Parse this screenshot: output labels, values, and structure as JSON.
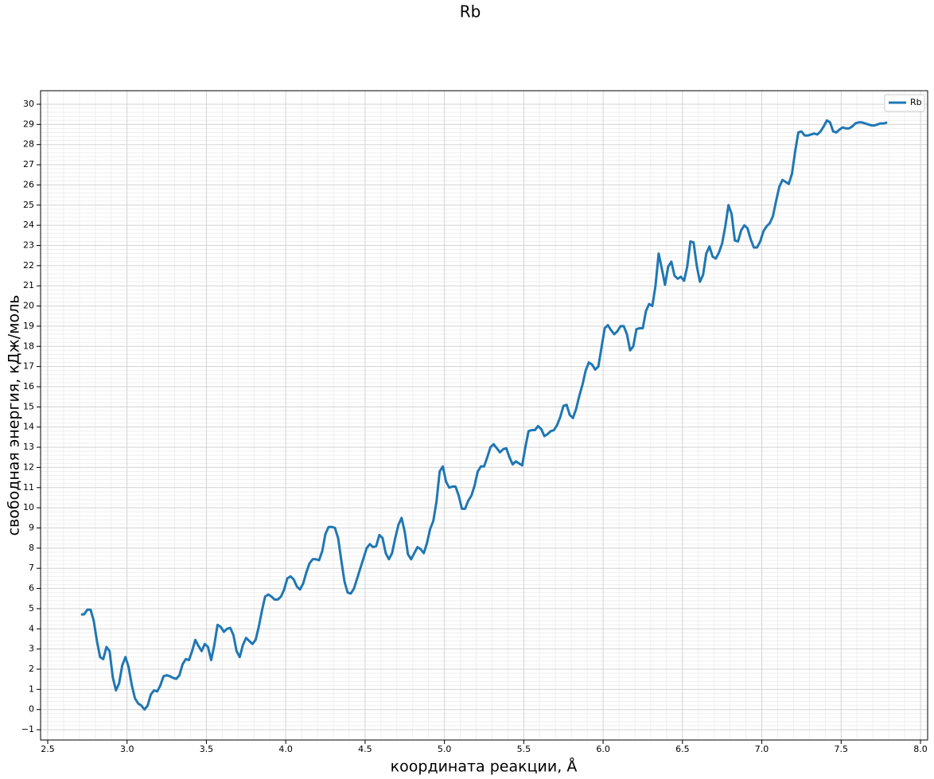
{
  "chart_data": {
    "type": "line",
    "title": "Rb",
    "xlabel": "координата реакции, Å",
    "ylabel": "свободная энергия, кДж/моль",
    "x": [
      2.71,
      2.73,
      2.75,
      2.77,
      2.79,
      2.81,
      2.83,
      2.85,
      2.87,
      2.89,
      2.91,
      2.93,
      2.95,
      2.97,
      2.99,
      3.01,
      3.03,
      3.05,
      3.07,
      3.09,
      3.11,
      3.13,
      3.15,
      3.17,
      3.19,
      3.21,
      3.23,
      3.25,
      3.27,
      3.29,
      3.31,
      3.33,
      3.35,
      3.37,
      3.39,
      3.41,
      3.43,
      3.45,
      3.47,
      3.49,
      3.51,
      3.53,
      3.55,
      3.57,
      3.59,
      3.61,
      3.63,
      3.65,
      3.67,
      3.69,
      3.71,
      3.73,
      3.75,
      3.77,
      3.79,
      3.81,
      3.83,
      3.85,
      3.87,
      3.89,
      3.91,
      3.93,
      3.95,
      3.97,
      3.99,
      4.01,
      4.03,
      4.05,
      4.07,
      4.09,
      4.11,
      4.13,
      4.15,
      4.17,
      4.19,
      4.21,
      4.23,
      4.25,
      4.27,
      4.29,
      4.31,
      4.33,
      4.35,
      4.37,
      4.39,
      4.41,
      4.43,
      4.45,
      4.47,
      4.49,
      4.51,
      4.53,
      4.55,
      4.57,
      4.59,
      4.61,
      4.63,
      4.65,
      4.67,
      4.69,
      4.71,
      4.73,
      4.75,
      4.77,
      4.79,
      4.81,
      4.83,
      4.85,
      4.87,
      4.89,
      4.91,
      4.93,
      4.95,
      4.97,
      4.99,
      5.01,
      5.03,
      5.05,
      5.07,
      5.09,
      5.11,
      5.13,
      5.15,
      5.17,
      5.19,
      5.21,
      5.23,
      5.25,
      5.27,
      5.29,
      5.31,
      5.33,
      5.35,
      5.37,
      5.39,
      5.41,
      5.43,
      5.45,
      5.47,
      5.49,
      5.51,
      5.53,
      5.55,
      5.57,
      5.59,
      5.61,
      5.63,
      5.65,
      5.67,
      5.69,
      5.71,
      5.73,
      5.75,
      5.77,
      5.79,
      5.81,
      5.83,
      5.85,
      5.87,
      5.89,
      5.91,
      5.93,
      5.95,
      5.97,
      5.99,
      6.01,
      6.03,
      6.05,
      6.07,
      6.09,
      6.11,
      6.13,
      6.15,
      6.17,
      6.19,
      6.21,
      6.23,
      6.25,
      6.27,
      6.29,
      6.31,
      6.33,
      6.35,
      6.37,
      6.39,
      6.41,
      6.43,
      6.45,
      6.47,
      6.49,
      6.51,
      6.53,
      6.55,
      6.57,
      6.59,
      6.61,
      6.63,
      6.65,
      6.67,
      6.69,
      6.71,
      6.73,
      6.75,
      6.77,
      6.79,
      6.81,
      6.83,
      6.85,
      6.87,
      6.89,
      6.91,
      6.93,
      6.95,
      6.97,
      6.99,
      7.01,
      7.03,
      7.05,
      7.07,
      7.09,
      7.11,
      7.13,
      7.15,
      7.17,
      7.19,
      7.21,
      7.23,
      7.25,
      7.27,
      7.29,
      7.31,
      7.33,
      7.35,
      7.37,
      7.39,
      7.41,
      7.43,
      7.45,
      7.47,
      7.49,
      7.51,
      7.53,
      7.55,
      7.57,
      7.59,
      7.61,
      7.63,
      7.65,
      7.67,
      7.69,
      7.71,
      7.73,
      7.75,
      7.77,
      7.79
    ],
    "series": [
      {
        "name": "Rb",
        "color": "#1f77b4",
        "values": [
          4.71,
          4.72,
          4.95,
          4.95,
          4.4,
          3.4,
          2.6,
          2.5,
          3.1,
          2.9,
          1.6,
          0.95,
          1.3,
          2.2,
          2.6,
          2.1,
          1.2,
          0.55,
          0.3,
          0.2,
          0.0,
          0.2,
          0.75,
          0.95,
          0.9,
          1.2,
          1.65,
          1.7,
          1.65,
          1.57,
          1.52,
          1.7,
          2.25,
          2.5,
          2.45,
          2.9,
          3.45,
          3.15,
          2.9,
          3.25,
          3.1,
          2.45,
          3.2,
          4.2,
          4.1,
          3.85,
          4.0,
          4.05,
          3.7,
          2.9,
          2.6,
          3.2,
          3.55,
          3.4,
          3.25,
          3.45,
          4.1,
          4.9,
          5.6,
          5.7,
          5.6,
          5.45,
          5.45,
          5.6,
          5.95,
          6.5,
          6.6,
          6.45,
          6.1,
          5.95,
          6.25,
          6.8,
          7.25,
          7.45,
          7.45,
          7.4,
          7.85,
          8.7,
          9.05,
          9.05,
          9.0,
          8.5,
          7.4,
          6.35,
          5.8,
          5.75,
          6.0,
          6.5,
          7.0,
          7.5,
          8.0,
          8.2,
          8.05,
          8.1,
          8.65,
          8.5,
          7.75,
          7.45,
          7.75,
          8.5,
          9.15,
          9.5,
          8.8,
          7.7,
          7.45,
          7.75,
          8.05,
          7.95,
          7.75,
          8.25,
          8.95,
          9.35,
          10.3,
          11.8,
          12.05,
          11.3,
          11.0,
          11.05,
          11.05,
          10.6,
          9.95,
          9.95,
          10.35,
          10.6,
          11.1,
          11.8,
          12.05,
          12.05,
          12.5,
          13.0,
          13.15,
          12.95,
          12.75,
          12.9,
          12.95,
          12.5,
          12.15,
          12.3,
          12.2,
          12.1,
          13.0,
          13.8,
          13.85,
          13.85,
          14.05,
          13.9,
          13.55,
          13.65,
          13.8,
          13.85,
          14.1,
          14.5,
          15.05,
          15.1,
          14.6,
          14.45,
          14.9,
          15.55,
          16.1,
          16.8,
          17.2,
          17.1,
          16.85,
          17.0,
          17.95,
          18.9,
          19.05,
          18.8,
          18.6,
          18.75,
          19.0,
          19.0,
          18.6,
          17.8,
          18.0,
          18.85,
          18.9,
          18.9,
          19.75,
          20.1,
          20.0,
          21.0,
          22.6,
          21.85,
          21.05,
          21.95,
          22.2,
          21.5,
          21.35,
          21.45,
          21.25,
          21.95,
          23.2,
          23.15,
          22.0,
          21.2,
          21.55,
          22.6,
          22.95,
          22.45,
          22.35,
          22.65,
          23.1,
          23.95,
          25.0,
          24.55,
          23.25,
          23.2,
          23.75,
          24.0,
          23.85,
          23.3,
          22.9,
          22.9,
          23.2,
          23.7,
          23.95,
          24.1,
          24.45,
          25.2,
          25.9,
          26.25,
          26.15,
          26.05,
          26.55,
          27.65,
          28.6,
          28.65,
          28.45,
          28.45,
          28.5,
          28.55,
          28.5,
          28.65,
          28.9,
          29.2,
          29.1,
          28.65,
          28.6,
          28.75,
          28.85,
          28.8,
          28.8,
          28.9,
          29.05,
          29.1,
          29.1,
          29.05,
          29.0,
          28.95,
          28.95,
          29.0,
          29.05,
          29.05,
          29.1
        ]
      }
    ],
    "xlim": [
      2.455,
      8.045
    ],
    "ylim": [
      -1.51,
      30.67
    ],
    "xticks": [
      2.5,
      {
        "value": 3,
        "label": "3.0"
      },
      3.5,
      {
        "value": 4,
        "label": "4.0"
      },
      4.5,
      {
        "value": 5,
        "label": "5.0"
      },
      5.5,
      {
        "value": 6,
        "label": "6.0"
      },
      6.5,
      {
        "value": 7,
        "label": "7.0"
      },
      7.5,
      {
        "value": 8,
        "label": "8.0"
      }
    ],
    "yticks": [
      {
        "value": -1,
        "label": "−1"
      },
      0,
      1,
      2,
      3,
      4,
      5,
      6,
      7,
      8,
      9,
      10,
      11,
      12,
      13,
      14,
      15,
      16,
      17,
      18,
      19,
      20,
      21,
      22,
      23,
      24,
      25,
      26,
      27,
      28,
      29,
      30
    ],
    "grid": true,
    "minor_grid": true,
    "legend": "upper right"
  }
}
